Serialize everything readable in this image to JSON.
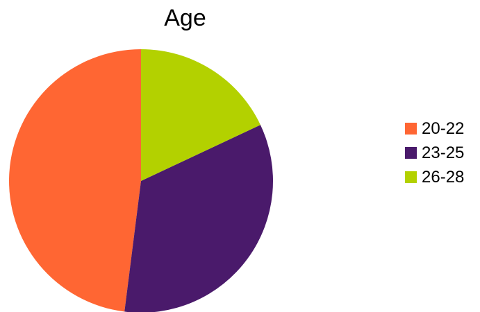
{
  "chart_data": {
    "type": "pie",
    "title": "Age",
    "legend_position": "right",
    "slices": [
      {
        "label": "20-22",
        "value": 48,
        "color": "#ff6633"
      },
      {
        "label": "23-25",
        "value": 34,
        "color": "#4a1a6b"
      },
      {
        "label": "26-28",
        "value": 18,
        "color": "#b3d100"
      }
    ],
    "start_angle_deg": 0,
    "direction": "counterclockwise"
  }
}
